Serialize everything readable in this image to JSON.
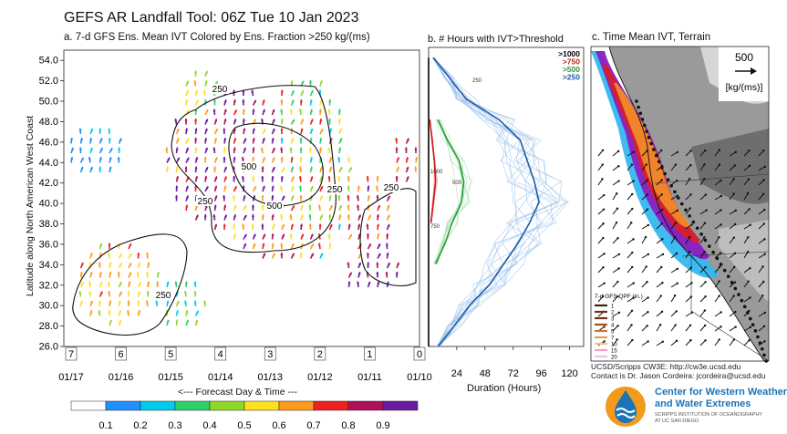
{
  "title": "GEFS AR Landfall Tool: 06Z Tue 10 Jan 2023",
  "panel_a": {
    "title": "a. 7-d GFS Ens. Mean IVT Colored by Ens. Fraction >250 kg/(ms)",
    "ylabel": "Latitude along North American West Coast",
    "xlabel": "<--- Forecast Day & Time ---",
    "day_boxes": [
      "7",
      "6",
      "5",
      "4",
      "3",
      "2",
      "1",
      "0"
    ],
    "date_ticks": [
      "01/17",
      "01/16",
      "01/15",
      "01/14",
      "01/13",
      "01/12",
      "01/11",
      "01/10"
    ],
    "lat_ticks": [
      "26.0",
      "28.0",
      "30.0",
      "32.0",
      "34.0",
      "36.0",
      "38.0",
      "40.0",
      "42.0",
      "44.0",
      "46.0",
      "48.0",
      "50.0",
      "52.0",
      "54.0"
    ],
    "contour_labels": [
      "250",
      "500",
      "500",
      "250",
      "250",
      "250",
      "250"
    ]
  },
  "panel_b": {
    "title": "b. # Hours with IVT>Threshold",
    "xlabel": "Duration (Hours)",
    "xticks": [
      "24",
      "48",
      "72",
      "96",
      "120"
    ],
    "legend": [
      {
        "label": ">1000",
        "color": "#000000"
      },
      {
        "label": ">750",
        "color": "#d01c1c"
      },
      {
        "label": ">500",
        "color": "#2a9a3a"
      },
      {
        "label": ">250",
        "color": "#1f5aa6"
      }
    ],
    "inline_labels": [
      "250",
      "500",
      "750",
      "1000"
    ]
  },
  "panel_c": {
    "title": "c. Time Mean IVT, Terrain",
    "ref_vector_value": "500",
    "ref_vector_unit": "[kg/(ms)]",
    "qpf_title": "7-d GFS QPF (in.)",
    "qpf_levels": [
      {
        "label": "1",
        "color": "#3d1f0a"
      },
      {
        "label": "2",
        "color": "#6b3410"
      },
      {
        "label": "3",
        "color": "#7a2a10"
      },
      {
        "label": "4",
        "color": "#a8501c"
      },
      {
        "label": "5",
        "color": "#c9782e"
      },
      {
        "label": "7",
        "color": "#e0a050"
      },
      {
        "label": "10",
        "color": "#f0c47a"
      },
      {
        "label": "15",
        "color": "#f5a0c0"
      },
      {
        "label": "20",
        "color": "#e9c6e6"
      }
    ]
  },
  "colorbar": {
    "labels": [
      "0.1",
      "0.2",
      "0.3",
      "0.4",
      "0.5",
      "0.6",
      "0.7",
      "0.8",
      "0.9"
    ],
    "colors": [
      "#ffffff",
      "#1e90ff",
      "#00ccee",
      "#2fd06a",
      "#8ed82a",
      "#ffe020",
      "#ff9a1a",
      "#ee2020",
      "#b0105a",
      "#6a1aa0"
    ]
  },
  "credits": {
    "line1": "UCSD/Scripps CW3E: http://cw3e.ucsd.edu",
    "line2": "Contact is Dr. Jason Cordeira: jcordeira@ucsd.edu"
  },
  "logo": {
    "line1": "Center for Western Weather",
    "line2": "and Water Extremes",
    "line3": "SCRIPPS INSTITUTION OF OCEANOGRAPHY",
    "line4": "AT UC SAN DIEGO"
  },
  "chart_data": [
    {
      "type": "heatmap",
      "title": "a. 7-d GFS Ens. Mean IVT Colored by Ens. Fraction >250 kg/(ms)",
      "xlabel": "<--- Forecast Day & Time ---",
      "ylabel": "Latitude along North American West Coast",
      "x_categories": [
        "01/17",
        "01/16",
        "01/15",
        "01/14",
        "01/13",
        "01/12",
        "01/11",
        "01/10"
      ],
      "ylim": [
        26,
        55
      ],
      "colorbar_range": [
        0.1,
        0.9
      ],
      "contours": [
        250,
        500
      ],
      "ivt_threshold": 250
    },
    {
      "type": "line",
      "title": "b. # Hours with IVT>Threshold",
      "xlabel": "Duration (Hours)",
      "xlim": [
        0,
        132
      ],
      "ylim": [
        26,
        55
      ],
      "series": [
        {
          "name": ">250",
          "color": "#1f5aa6",
          "lat": [
            26,
            28,
            30,
            32,
            34,
            36,
            38,
            40,
            42,
            44,
            46,
            48,
            50,
            52,
            54
          ],
          "hours": [
            8,
            22,
            35,
            52,
            64,
            76,
            86,
            94,
            90,
            84,
            78,
            60,
            32,
            18,
            4
          ]
        },
        {
          "name": ">500",
          "color": "#2a9a3a",
          "lat": [
            34,
            36,
            38,
            40,
            42,
            44,
            46,
            48
          ],
          "hours": [
            6,
            14,
            20,
            28,
            30,
            26,
            16,
            8
          ]
        },
        {
          "name": ">750",
          "color": "#d01c1c",
          "lat": [
            38,
            40,
            42,
            44,
            46,
            48
          ],
          "hours": [
            2,
            4,
            6,
            5,
            3,
            1
          ]
        },
        {
          "name": ">1000",
          "color": "#000000",
          "lat": [
            26,
            54
          ],
          "hours": [
            0,
            0
          ]
        }
      ]
    }
  ]
}
